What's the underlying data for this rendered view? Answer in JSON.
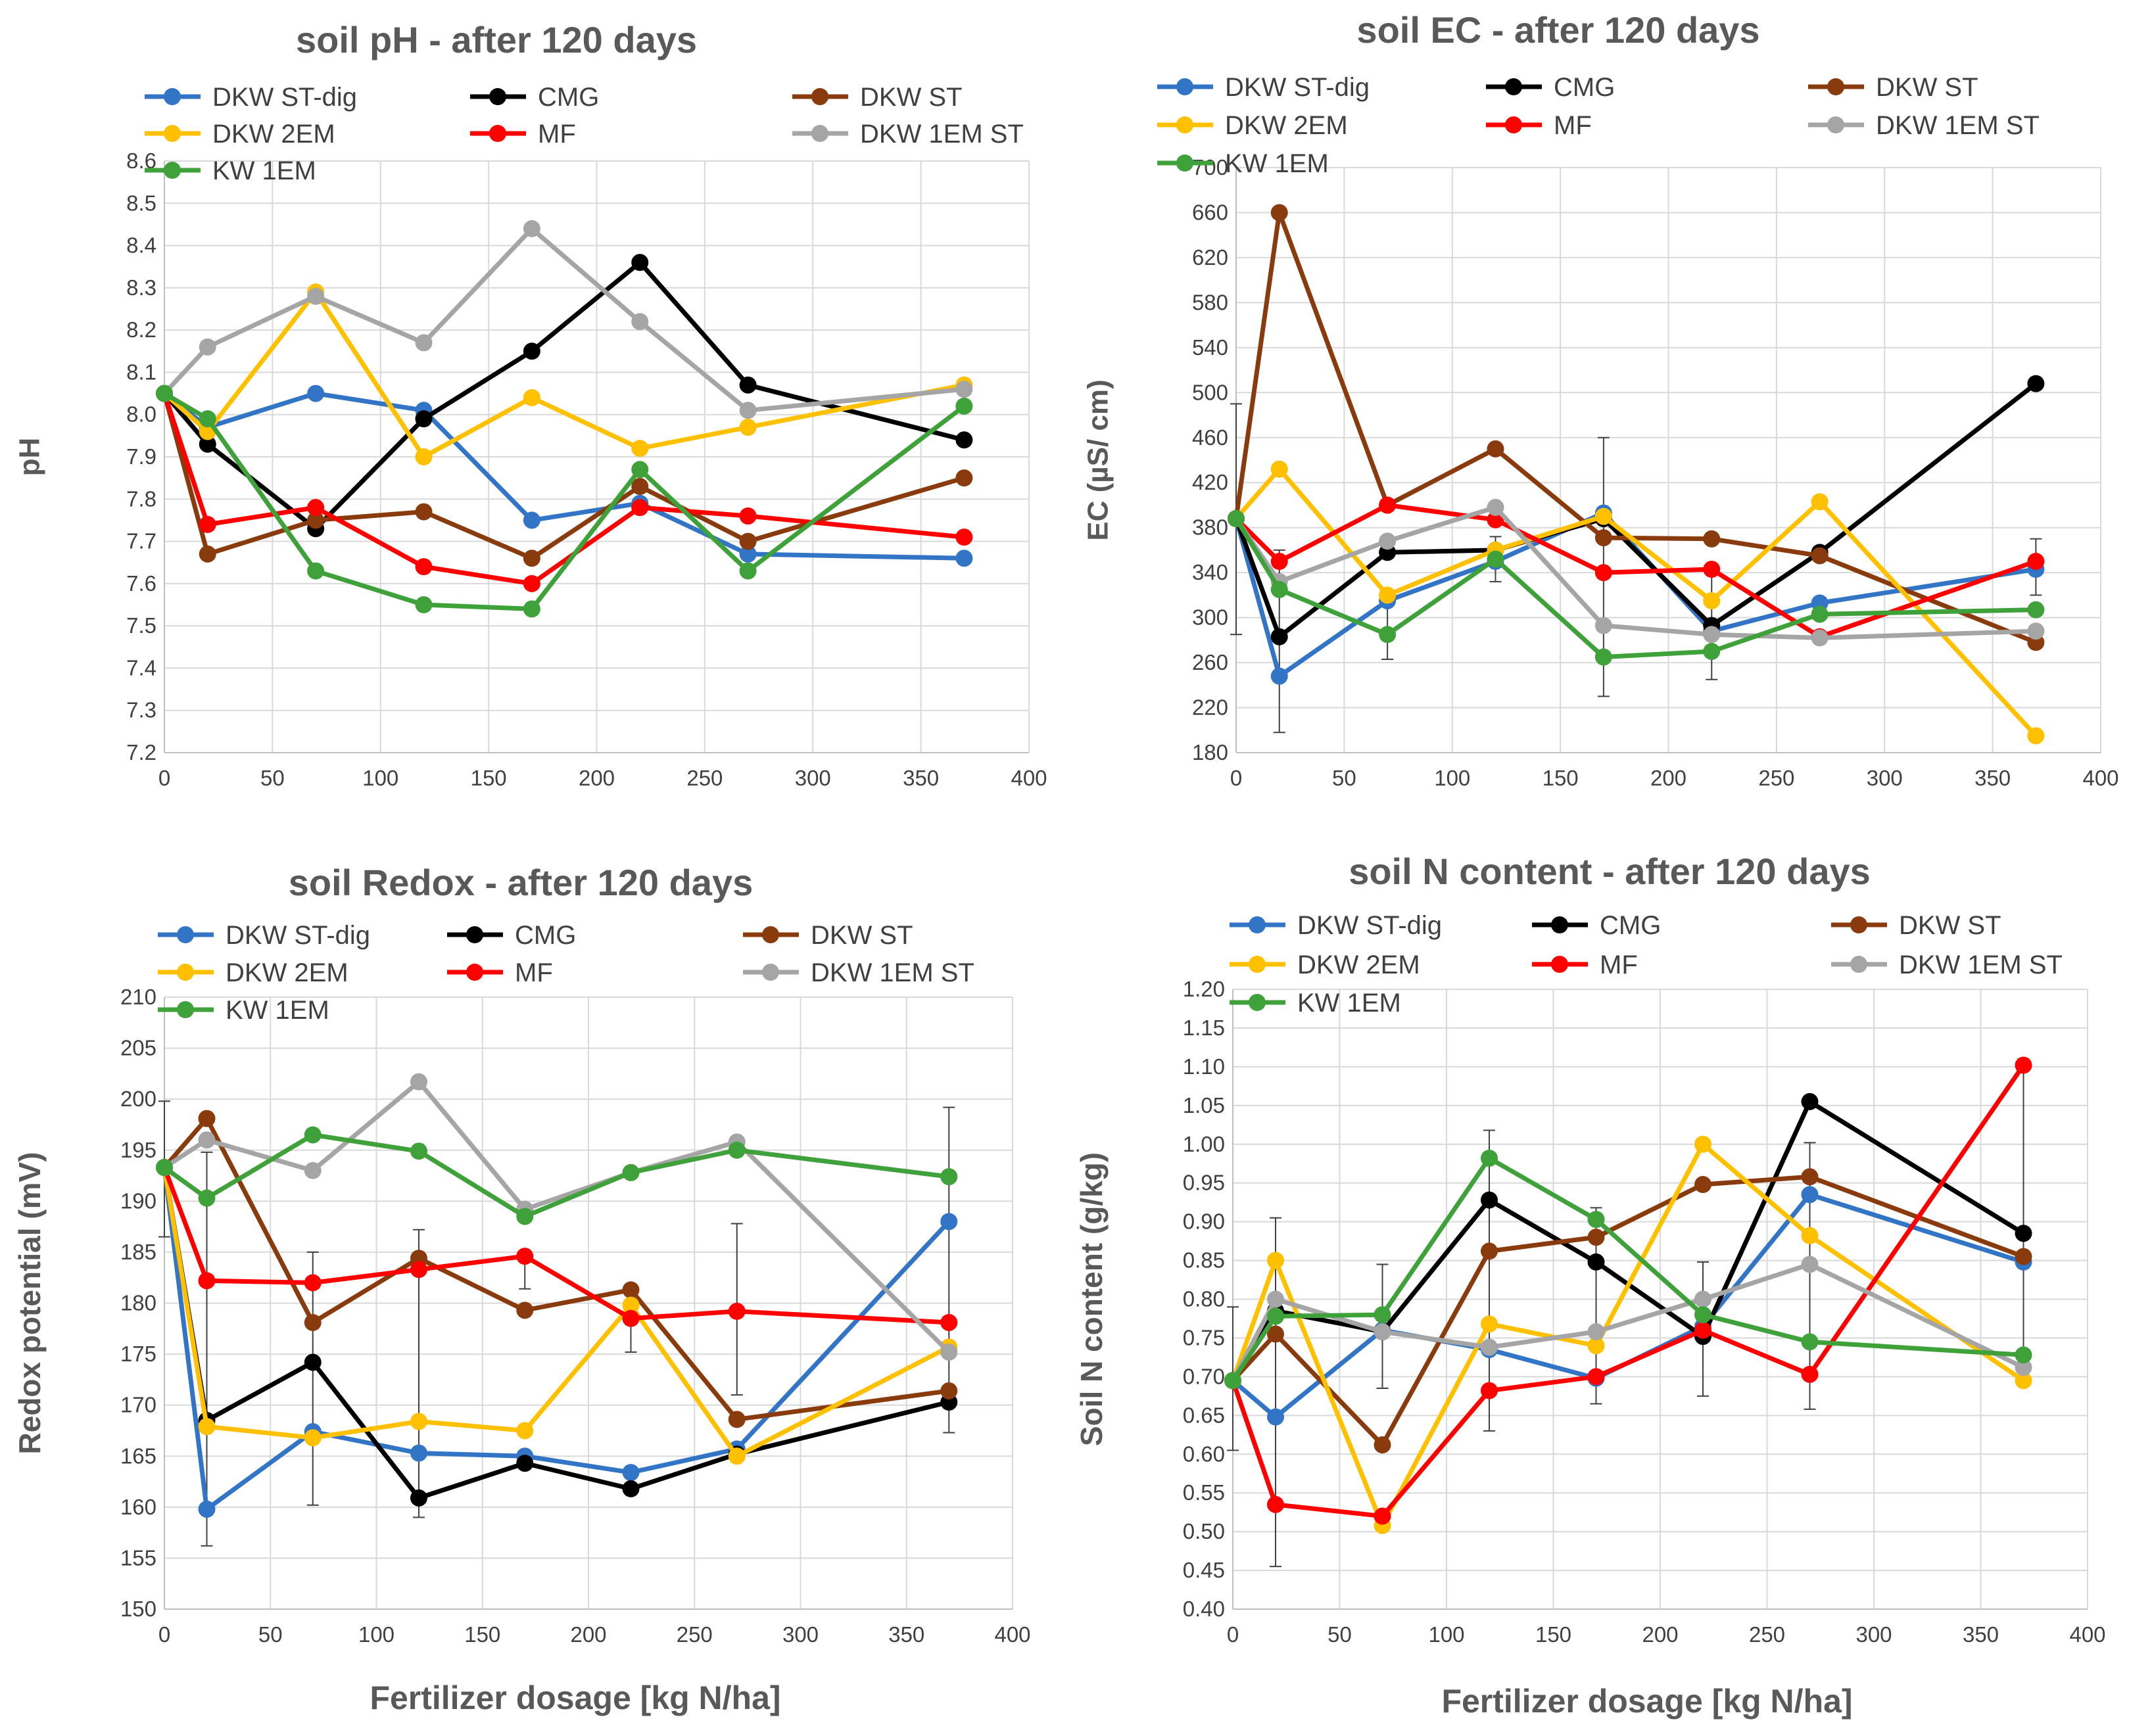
{
  "figure": {
    "colors": {
      "DKW ST-dig": "#3274C6",
      "CMG": "#000000",
      "DKW ST": "#8A3B0E",
      "DKW 2EM": "#FFC000",
      "MF": "#FF0000",
      "DKW 1EM ST": "#A5A5A5",
      "KW 1EM": "#3FA13A"
    }
  },
  "chart_data": [
    {
      "type": "line",
      "title": "soil pH - after 120 days",
      "xlabel": "",
      "ylabel": "pH",
      "xlim": [
        0,
        400
      ],
      "xticks": [
        0,
        50,
        100,
        150,
        200,
        250,
        300,
        350,
        400
      ],
      "ylim": [
        7.2,
        8.6
      ],
      "yticks": [
        "7.2",
        "7.3",
        "7.4",
        "7.5",
        "7.6",
        "7.7",
        "7.8",
        "7.9",
        "8.0",
        "8.1",
        "8.2",
        "8.3",
        "8.4",
        "8.5",
        "8.6"
      ],
      "x": [
        0,
        20,
        70,
        120,
        170,
        220,
        270,
        370
      ],
      "series": [
        {
          "name": "DKW ST-dig",
          "values": [
            8.05,
            7.97,
            8.05,
            8.01,
            7.75,
            7.79,
            7.67,
            7.66
          ]
        },
        {
          "name": "CMG",
          "values": [
            8.05,
            7.93,
            7.73,
            7.99,
            8.15,
            8.36,
            8.07,
            7.94
          ]
        },
        {
          "name": "DKW ST",
          "values": [
            8.05,
            7.67,
            7.75,
            7.77,
            7.66,
            7.83,
            7.7,
            7.85
          ]
        },
        {
          "name": "DKW 2EM",
          "values": [
            8.05,
            7.96,
            8.29,
            7.9,
            8.04,
            7.92,
            7.97,
            8.07
          ]
        },
        {
          "name": "MF",
          "values": [
            8.05,
            7.74,
            7.78,
            7.64,
            7.6,
            7.78,
            7.76,
            7.71
          ]
        },
        {
          "name": "DKW 1EM ST",
          "values": [
            8.05,
            8.16,
            8.28,
            8.17,
            8.44,
            8.22,
            8.01,
            8.06
          ]
        },
        {
          "name": "KW 1EM",
          "values": [
            8.05,
            7.99,
            7.63,
            7.55,
            7.54,
            7.87,
            7.63,
            8.02
          ]
        }
      ],
      "error_bars": []
    },
    {
      "type": "line",
      "title": "soil EC - after 120 days",
      "xlabel": "",
      "ylabel": "EC (µS/ cm)",
      "xlim": [
        0,
        400
      ],
      "xticks": [
        0,
        50,
        100,
        150,
        200,
        250,
        300,
        350,
        400
      ],
      "ylim": [
        180,
        700
      ],
      "yticks": [
        "180",
        "220",
        "260",
        "300",
        "340",
        "380",
        "420",
        "460",
        "500",
        "540",
        "580",
        "620",
        "660",
        "700"
      ],
      "x": [
        0,
        20,
        70,
        120,
        170,
        220,
        270,
        370
      ],
      "series": [
        {
          "name": "DKW ST-dig",
          "values": [
            388,
            248,
            315,
            350,
            393,
            288,
            313,
            343
          ]
        },
        {
          "name": "CMG",
          "values": [
            388,
            283,
            358,
            360,
            388,
            293,
            358,
            508
          ]
        },
        {
          "name": "DKW ST",
          "values": [
            388,
            660,
            400,
            450,
            371,
            370,
            355,
            278
          ]
        },
        {
          "name": "DKW 2EM",
          "values": [
            388,
            432,
            320,
            360,
            390,
            315,
            403,
            195
          ]
        },
        {
          "name": "MF",
          "values": [
            388,
            350,
            400,
            387,
            340,
            343,
            283,
            350
          ]
        },
        {
          "name": "DKW 1EM ST",
          "values": [
            388,
            332,
            368,
            398,
            293,
            285,
            282,
            288
          ]
        },
        {
          "name": "KW 1EM",
          "values": [
            388,
            325,
            285,
            352,
            265,
            270,
            303,
            307
          ]
        }
      ],
      "error_bars": [
        {
          "x": 0,
          "low": 285,
          "high": 490
        },
        {
          "x": 20,
          "low": 198,
          "high": 360
        },
        {
          "x": 70,
          "low": 263,
          "high": 310
        },
        {
          "x": 120,
          "low": 332,
          "high": 372
        },
        {
          "x": 170,
          "low": 230,
          "high": 460
        },
        {
          "x": 220,
          "low": 245,
          "high": 345
        },
        {
          "x": 370,
          "low": 320,
          "high": 370
        }
      ]
    },
    {
      "type": "line",
      "title": "soil Redox - after 120 days",
      "xlabel": "Fertilizer dosage [kg N/ha]",
      "ylabel": "Redox potential (mV)",
      "xlim": [
        0,
        400
      ],
      "xticks": [
        0,
        50,
        100,
        150,
        200,
        250,
        300,
        350,
        400
      ],
      "ylim": [
        150,
        210
      ],
      "yticks": [
        "150",
        "155",
        "160",
        "165",
        "170",
        "175",
        "180",
        "185",
        "190",
        "195",
        "200",
        "205",
        "210"
      ],
      "x": [
        0,
        20,
        70,
        120,
        170,
        220,
        270,
        370
      ],
      "series": [
        {
          "name": "DKW ST-dig",
          "values": [
            193.3,
            159.8,
            167.4,
            165.3,
            165.0,
            163.4,
            165.7,
            188.0
          ]
        },
        {
          "name": "CMG",
          "values": [
            193.3,
            168.5,
            174.2,
            160.9,
            164.3,
            161.8,
            165.2,
            170.3
          ]
        },
        {
          "name": "DKW ST",
          "values": [
            193.3,
            198.1,
            178.1,
            184.4,
            179.3,
            181.3,
            168.6,
            171.4
          ]
        },
        {
          "name": "DKW 2EM",
          "values": [
            193.3,
            167.9,
            166.8,
            168.4,
            167.5,
            179.8,
            165.0,
            175.7
          ]
        },
        {
          "name": "MF",
          "values": [
            193.3,
            182.2,
            182.0,
            183.3,
            184.6,
            178.5,
            179.2,
            178.1
          ]
        },
        {
          "name": "DKW 1EM ST",
          "values": [
            193.3,
            196.0,
            193.0,
            201.7,
            189.2,
            192.8,
            195.8,
            175.2
          ]
        },
        {
          "name": "KW 1EM",
          "values": [
            193.3,
            190.3,
            196.5,
            194.9,
            188.5,
            192.8,
            195.0,
            192.4
          ]
        }
      ],
      "error_bars": [
        {
          "x": 0,
          "low": 186.5,
          "high": 199.8
        },
        {
          "x": 20,
          "low": 156.2,
          "high": 194.8
        },
        {
          "x": 70,
          "low": 160.2,
          "high": 185.0
        },
        {
          "x": 120,
          "low": 159.0,
          "high": 187.2
        },
        {
          "x": 170,
          "low": 181.4,
          "high": 184.6
        },
        {
          "x": 220,
          "low": 175.2,
          "high": 179.8
        },
        {
          "x": 270,
          "low": 171.0,
          "high": 187.8
        },
        {
          "x": 370,
          "low": 167.3,
          "high": 199.2
        }
      ]
    },
    {
      "type": "line",
      "title": "soil N content - after 120 days",
      "xlabel": "Fertilizer dosage [kg N/ha]",
      "ylabel": "Soil N content (g/kg)",
      "xlim": [
        0,
        400
      ],
      "xticks": [
        0,
        50,
        100,
        150,
        200,
        250,
        300,
        350,
        400
      ],
      "ylim": [
        0.4,
        1.2
      ],
      "yticks": [
        "0.40",
        "0.45",
        "0.50",
        "0.55",
        "0.60",
        "0.65",
        "0.70",
        "0.75",
        "0.80",
        "0.85",
        "0.90",
        "0.95",
        "1.00",
        "1.05",
        "1.10",
        "1.15",
        "1.20"
      ],
      "x": [
        0,
        20,
        70,
        120,
        170,
        220,
        270,
        370
      ],
      "series": [
        {
          "name": "DKW ST-dig",
          "values": [
            0.695,
            0.648,
            0.76,
            0.735,
            0.698,
            0.765,
            0.935,
            0.848
          ]
        },
        {
          "name": "CMG",
          "values": [
            0.695,
            0.785,
            0.758,
            0.928,
            0.848,
            0.752,
            1.055,
            0.885
          ]
        },
        {
          "name": "DKW ST",
          "values": [
            0.695,
            0.755,
            0.612,
            0.862,
            0.88,
            0.948,
            0.958,
            0.855
          ]
        },
        {
          "name": "DKW 2EM",
          "values": [
            0.695,
            0.85,
            0.508,
            0.768,
            0.74,
            1.0,
            0.882,
            0.695
          ]
        },
        {
          "name": "MF",
          "values": [
            0.695,
            0.535,
            0.52,
            0.682,
            0.7,
            0.76,
            0.703,
            1.102
          ]
        },
        {
          "name": "DKW 1EM ST",
          "values": [
            0.695,
            0.8,
            0.758,
            0.738,
            0.758,
            0.8,
            0.845,
            0.712
          ]
        },
        {
          "name": "KW 1EM",
          "values": [
            0.695,
            0.778,
            0.78,
            0.982,
            0.903,
            0.78,
            0.745,
            0.728
          ]
        }
      ],
      "error_bars": [
        {
          "x": 0,
          "low": 0.605,
          "high": 0.79
        },
        {
          "x": 20,
          "low": 0.455,
          "high": 0.905
        },
        {
          "x": 70,
          "low": 0.685,
          "high": 0.845
        },
        {
          "x": 120,
          "low": 0.63,
          "high": 1.018
        },
        {
          "x": 170,
          "low": 0.665,
          "high": 0.918
        },
        {
          "x": 220,
          "low": 0.675,
          "high": 0.848
        },
        {
          "x": 270,
          "low": 0.658,
          "high": 1.002
        },
        {
          "x": 370,
          "low": 0.7,
          "high": 1.11
        }
      ]
    }
  ]
}
